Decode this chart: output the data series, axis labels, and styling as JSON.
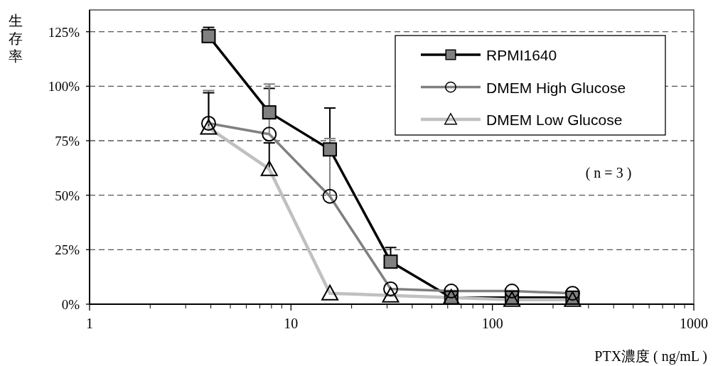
{
  "chart_data": {
    "type": "line",
    "ylabel": "生存率",
    "xlabel": "PTX濃度 ( ng/mL )",
    "annotations": [
      "( n = 3 )"
    ],
    "x": [
      3.9,
      7.8,
      15.6,
      31.25,
      62.5,
      125,
      250
    ],
    "xlim": [
      1,
      1000
    ],
    "xticks": [
      1,
      10,
      100,
      1000
    ],
    "log": "x",
    "ylim": [
      0,
      135
    ],
    "yticks": [
      {
        "value": 0,
        "label": "0%"
      },
      {
        "value": 25,
        "label": "25%"
      },
      {
        "value": 50,
        "label": "50%"
      },
      {
        "value": 75,
        "label": "75%"
      },
      {
        "value": 100,
        "label": "100%"
      },
      {
        "value": 125,
        "label": "125%"
      }
    ],
    "grid": "y",
    "legend": "top right",
    "series": [
      {
        "name": "RPMI1640",
        "color": "#000000",
        "marker": "square",
        "values": [
          123,
          88,
          71,
          19.5,
          3,
          3,
          3
        ],
        "errors": [
          [
            123,
            127
          ],
          [
            88,
            99
          ],
          [
            71,
            90
          ],
          [
            19.5,
            26
          ],
          null,
          null,
          null
        ]
      },
      {
        "name": "DMEM High Glucose",
        "color": "#808080",
        "marker": "circle",
        "values": [
          83,
          78,
          49.5,
          7,
          6,
          6,
          5
        ],
        "errors": [
          [
            83,
            98
          ],
          [
            78,
            101
          ],
          [
            49.5,
            76
          ],
          null,
          null,
          null,
          null
        ]
      },
      {
        "name": "DMEM Low Glucose",
        "color": "#c0c0c0",
        "marker": "triangle",
        "values": [
          81,
          62,
          5,
          4,
          3,
          2,
          2
        ],
        "errors": [
          [
            81,
            97
          ],
          [
            62,
            74
          ],
          null,
          null,
          null,
          null,
          null
        ]
      }
    ]
  }
}
